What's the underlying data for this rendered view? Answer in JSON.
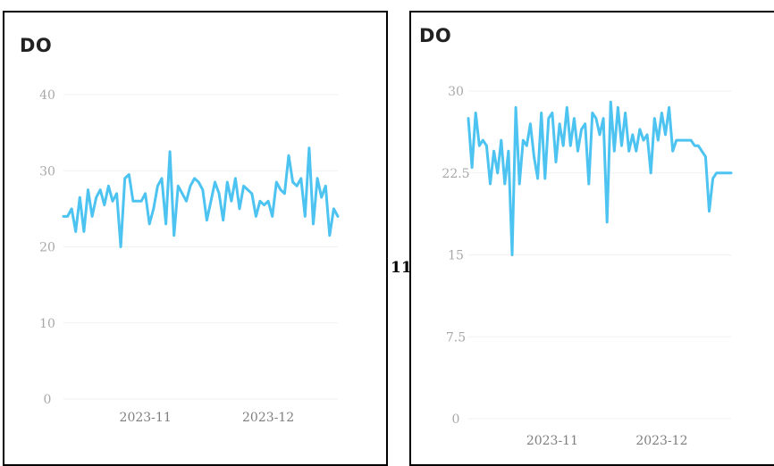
{
  "label_between": "11",
  "chart_data": [
    {
      "type": "line",
      "title": "DO",
      "xlabel": "",
      "ylabel": "",
      "ylim": [
        0,
        40
      ],
      "yticks": [
        0,
        10,
        20,
        30,
        40
      ],
      "ytick_labels": [
        "0",
        "10",
        "20",
        "30",
        "40"
      ],
      "xlim": [
        "2023-10-12",
        "2023-12-18"
      ],
      "xtick_dates": [
        "2023-11-01",
        "2023-12-01"
      ],
      "xtick_labels": [
        "2023-11",
        "2023-12"
      ],
      "grid": true,
      "line_color": "#4cc3f0",
      "grid_color": "#f1f1f1",
      "tick_color": "#a8a8a8",
      "series": [
        {
          "x": [
            "2023-10-12",
            "2023-10-13",
            "2023-10-14",
            "2023-10-15",
            "2023-10-16",
            "2023-10-17",
            "2023-10-18",
            "2023-10-19",
            "2023-10-20",
            "2023-10-21",
            "2023-10-22",
            "2023-10-23",
            "2023-10-24",
            "2023-10-25",
            "2023-10-26",
            "2023-10-27",
            "2023-10-28",
            "2023-10-29",
            "2023-10-30",
            "2023-10-31",
            "2023-11-01",
            "2023-11-02",
            "2023-11-03",
            "2023-11-04",
            "2023-11-05",
            "2023-11-06",
            "2023-11-07",
            "2023-11-08",
            "2023-11-09",
            "2023-11-10",
            "2023-11-11",
            "2023-11-12",
            "2023-11-13",
            "2023-11-14",
            "2023-11-15",
            "2023-11-16",
            "2023-11-17",
            "2023-11-18",
            "2023-11-19",
            "2023-11-20",
            "2023-11-21",
            "2023-11-22",
            "2023-11-23",
            "2023-11-24",
            "2023-11-25",
            "2023-11-26",
            "2023-11-27",
            "2023-11-28",
            "2023-11-29",
            "2023-11-30",
            "2023-12-01",
            "2023-12-02",
            "2023-12-03",
            "2023-12-04",
            "2023-12-05",
            "2023-12-06",
            "2023-12-07",
            "2023-12-08",
            "2023-12-09",
            "2023-12-10",
            "2023-12-11",
            "2023-12-12",
            "2023-12-13",
            "2023-12-14",
            "2023-12-15",
            "2023-12-16",
            "2023-12-17",
            "2023-12-18"
          ],
          "y": [
            24,
            24,
            25,
            22,
            26.5,
            22,
            27.5,
            24,
            26.5,
            27.5,
            25.5,
            28,
            26,
            27,
            20,
            29,
            29.5,
            26,
            26,
            26,
            27,
            23,
            25,
            28,
            29,
            23,
            32.5,
            21.5,
            28,
            27,
            26,
            28,
            29,
            28.5,
            27.5,
            23.5,
            26,
            28.5,
            27,
            23.5,
            28.5,
            26,
            29,
            25,
            28,
            27.5,
            27,
            24,
            26,
            25.5,
            26,
            24,
            28.5,
            27.5,
            27,
            32,
            28.5,
            28,
            29,
            24,
            33,
            23,
            29,
            26.5,
            28,
            21.5,
            25,
            24
          ]
        }
      ]
    },
    {
      "type": "line",
      "title": "DO",
      "xlabel": "",
      "ylabel": "",
      "ylim": [
        0,
        30
      ],
      "yticks": [
        0,
        7.5,
        15,
        22.5,
        30
      ],
      "ytick_labels": [
        "0",
        "7.5",
        "15",
        "22.5",
        "30"
      ],
      "xlim": [
        "2023-10-09",
        "2023-12-20"
      ],
      "xtick_dates": [
        "2023-11-01",
        "2023-12-01"
      ],
      "xtick_labels": [
        "2023-11",
        "2023-12"
      ],
      "grid": true,
      "line_color": "#4cc3f0",
      "grid_color": "#f1f1f1",
      "tick_color": "#a8a8a8",
      "series": [
        {
          "x": [
            "2023-10-09",
            "2023-10-10",
            "2023-10-11",
            "2023-10-12",
            "2023-10-13",
            "2023-10-14",
            "2023-10-15",
            "2023-10-16",
            "2023-10-17",
            "2023-10-18",
            "2023-10-19",
            "2023-10-20",
            "2023-10-21",
            "2023-10-22",
            "2023-10-23",
            "2023-10-24",
            "2023-10-25",
            "2023-10-26",
            "2023-10-27",
            "2023-10-28",
            "2023-10-29",
            "2023-10-30",
            "2023-10-31",
            "2023-11-01",
            "2023-11-02",
            "2023-11-03",
            "2023-11-04",
            "2023-11-05",
            "2023-11-06",
            "2023-11-07",
            "2023-11-08",
            "2023-11-09",
            "2023-11-10",
            "2023-11-11",
            "2023-11-12",
            "2023-11-13",
            "2023-11-14",
            "2023-11-15",
            "2023-11-16",
            "2023-11-17",
            "2023-11-18",
            "2023-11-19",
            "2023-11-20",
            "2023-11-21",
            "2023-11-22",
            "2023-11-23",
            "2023-11-24",
            "2023-11-25",
            "2023-11-26",
            "2023-11-27",
            "2023-11-28",
            "2023-11-29",
            "2023-11-30",
            "2023-12-01",
            "2023-12-02",
            "2023-12-03",
            "2023-12-04",
            "2023-12-05",
            "2023-12-06",
            "2023-12-07",
            "2023-12-08",
            "2023-12-09",
            "2023-12-10",
            "2023-12-11",
            "2023-12-12",
            "2023-12-13",
            "2023-12-14",
            "2023-12-15",
            "2023-12-16",
            "2023-12-17",
            "2023-12-18",
            "2023-12-19",
            "2023-12-20"
          ],
          "y": [
            27.5,
            23,
            28,
            25,
            25.5,
            25,
            21.5,
            24.5,
            22.5,
            25.5,
            21.5,
            24.5,
            15,
            28.5,
            21.5,
            25.5,
            25,
            27,
            24,
            22,
            28,
            22,
            27.5,
            28,
            23.5,
            27,
            25,
            28.5,
            25,
            27.5,
            24.5,
            26.5,
            27,
            21.5,
            28,
            27.5,
            26,
            27.5,
            18,
            29,
            24.5,
            28.5,
            25,
            28,
            24.5,
            26,
            24.5,
            26.5,
            25.5,
            26,
            22.5,
            27.5,
            25.5,
            28,
            26,
            28.5,
            24.5,
            25.5,
            25.5,
            25.5,
            25.5,
            25.5,
            25,
            25,
            24.5,
            24,
            19,
            22,
            22.5,
            22.5,
            22.5,
            22.5,
            22.5
          ]
        }
      ]
    }
  ]
}
